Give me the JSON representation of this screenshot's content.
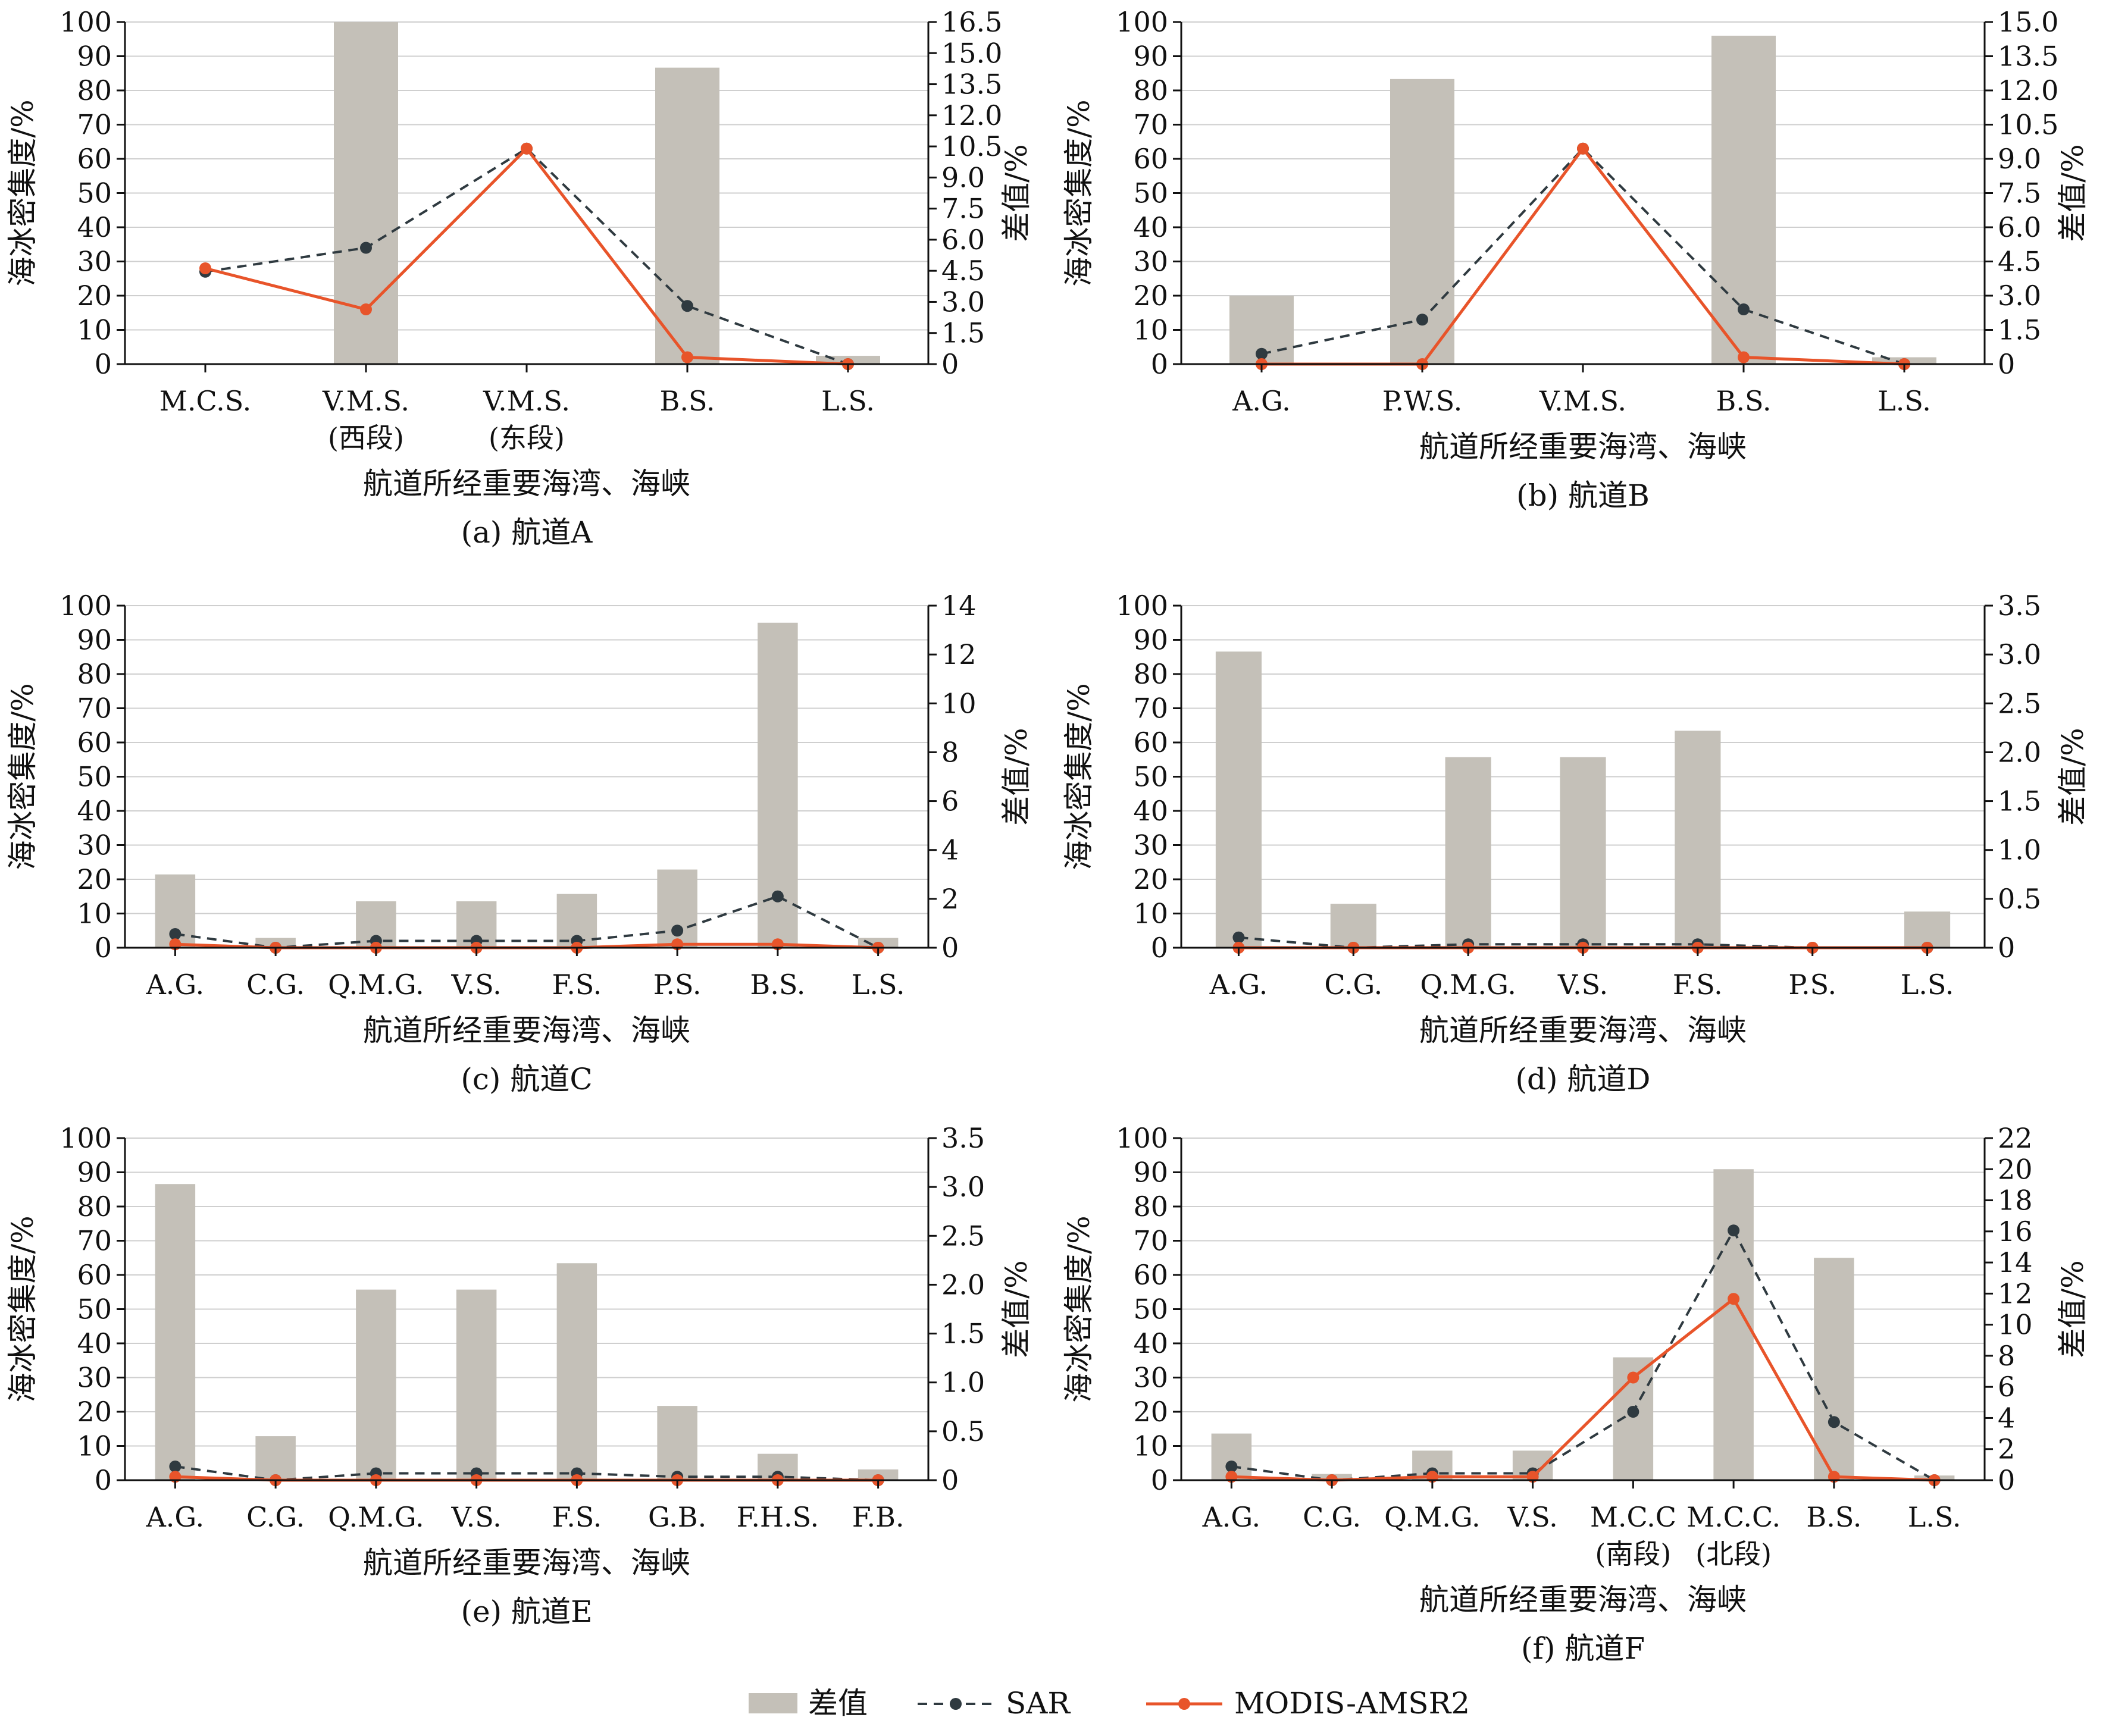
{
  "legend": [
    {
      "key": "diff",
      "label": "差值",
      "color": "#c4c0b8",
      "kind": "bar"
    },
    {
      "key": "sar",
      "label": "SAR",
      "color": "#2f3a40",
      "kind": "dashed-line"
    },
    {
      "key": "modis",
      "label": "MODIS-AMSR2",
      "color": "#e8542a",
      "kind": "line"
    }
  ],
  "chart_data": [
    {
      "type": "bar+line",
      "caption": "(a) 航道A",
      "xlabel": "航道所经重要海湾、海峡",
      "ylabel": "海冰密集度/%",
      "y2label": "差值/%",
      "categories": [
        [
          "M.C.S."
        ],
        [
          "V.M.S.",
          "(西段)"
        ],
        [
          "V.M.S.",
          "(东段)"
        ],
        [
          "B.S."
        ],
        [
          "L.S."
        ]
      ],
      "ylim": [
        0,
        100
      ],
      "yticks": [
        0,
        10,
        20,
        30,
        40,
        50,
        60,
        70,
        80,
        90,
        100
      ],
      "y2lim": [
        0,
        16.5
      ],
      "y2ticks": [
        "0",
        "1.5",
        "3.0",
        "4.5",
        "6.0",
        "7.5",
        "9.0",
        "10.5",
        "12.0",
        "13.5",
        "15.0",
        "16.5"
      ],
      "series": [
        {
          "name": "差值",
          "kind": "bar",
          "axis": "right",
          "values": [
            0,
            16.5,
            0,
            14.3,
            0.4
          ]
        },
        {
          "name": "SAR",
          "kind": "dashed-line",
          "axis": "left",
          "values": [
            27,
            34,
            63,
            17,
            0
          ]
        },
        {
          "name": "MODIS-AMSR2",
          "kind": "line",
          "axis": "left",
          "values": [
            28,
            16,
            63,
            2,
            0
          ]
        }
      ]
    },
    {
      "type": "bar+line",
      "caption": "(b) 航道B",
      "xlabel": "航道所经重要海湾、海峡",
      "ylabel": "海冰密集度/%",
      "y2label": "差值/%",
      "categories": [
        [
          "A.G."
        ],
        [
          "P.W.S."
        ],
        [
          "V.M.S."
        ],
        [
          "B.S."
        ],
        [
          "L.S."
        ]
      ],
      "ylim": [
        0,
        100
      ],
      "yticks": [
        0,
        10,
        20,
        30,
        40,
        50,
        60,
        70,
        80,
        90,
        100
      ],
      "y2lim": [
        0,
        15
      ],
      "y2ticks": [
        "0",
        "1.5",
        "3.0",
        "4.5",
        "6.0",
        "7.5",
        "9.0",
        "10.5",
        "12.0",
        "13.5",
        "15.0"
      ],
      "series": [
        {
          "name": "差值",
          "kind": "bar",
          "axis": "right",
          "values": [
            3.0,
            12.5,
            0,
            14.4,
            0.3
          ]
        },
        {
          "name": "SAR",
          "kind": "dashed-line",
          "axis": "left",
          "values": [
            3,
            13,
            63,
            16,
            0
          ]
        },
        {
          "name": "MODIS-AMSR2",
          "kind": "line",
          "axis": "left",
          "values": [
            0,
            0,
            63,
            2,
            0
          ]
        }
      ]
    },
    {
      "type": "bar+line",
      "caption": "(c) 航道C",
      "xlabel": "航道所经重要海湾、海峡",
      "ylabel": "海冰密集度/%",
      "y2label": "差值/%",
      "categories": [
        [
          "A.G."
        ],
        [
          "C.G."
        ],
        [
          "Q.M.G."
        ],
        [
          "V.S."
        ],
        [
          "F.S."
        ],
        [
          "P.S."
        ],
        [
          "B.S."
        ],
        [
          "L.S."
        ]
      ],
      "ylim": [
        0,
        100
      ],
      "yticks": [
        0,
        10,
        20,
        30,
        40,
        50,
        60,
        70,
        80,
        90,
        100
      ],
      "y2lim": [
        0,
        14
      ],
      "y2ticks": [
        "0",
        "2",
        "4",
        "6",
        "8",
        "10",
        "12",
        "14"
      ],
      "series": [
        {
          "name": "差值",
          "kind": "bar",
          "axis": "right",
          "values": [
            3.0,
            0.4,
            1.9,
            1.9,
            2.2,
            3.2,
            13.3,
            0.4
          ]
        },
        {
          "name": "SAR",
          "kind": "dashed-line",
          "axis": "left",
          "values": [
            4,
            0,
            2,
            2,
            2,
            5,
            15,
            0
          ]
        },
        {
          "name": "MODIS-AMSR2",
          "kind": "line",
          "axis": "left",
          "values": [
            1,
            0,
            0,
            0,
            0,
            1,
            1,
            0
          ]
        }
      ]
    },
    {
      "type": "bar+line",
      "caption": "(d) 航道D",
      "xlabel": "航道所经重要海湾、海峡",
      "ylabel": "海冰密集度/%",
      "y2label": "差值/%",
      "categories": [
        [
          "A.G."
        ],
        [
          "C.G."
        ],
        [
          "Q.M.G."
        ],
        [
          "V.S."
        ],
        [
          "F.S."
        ],
        [
          "P.S."
        ],
        [
          "L.S."
        ]
      ],
      "ylim": [
        0,
        100
      ],
      "yticks": [
        0,
        10,
        20,
        30,
        40,
        50,
        60,
        70,
        80,
        90,
        100
      ],
      "y2lim": [
        0,
        3.5
      ],
      "y2ticks": [
        "0",
        "0.5",
        "1.0",
        "1.5",
        "2.0",
        "2.5",
        "3.0",
        "3.5"
      ],
      "series": [
        {
          "name": "差值",
          "kind": "bar",
          "axis": "right",
          "values": [
            3.03,
            0.45,
            1.95,
            1.95,
            2.22,
            0,
            0.37
          ]
        },
        {
          "name": "SAR",
          "kind": "dashed-line",
          "axis": "left",
          "values": [
            3,
            0,
            1,
            1,
            1,
            0,
            0
          ]
        },
        {
          "name": "MODIS-AMSR2",
          "kind": "line",
          "axis": "left",
          "values": [
            0,
            0,
            0,
            0,
            0,
            0,
            0
          ]
        }
      ]
    },
    {
      "type": "bar+line",
      "caption": "(e) 航道E",
      "xlabel": "航道所经重要海湾、海峡",
      "ylabel": "海冰密集度/%",
      "y2label": "差值/%",
      "categories": [
        [
          "A.G."
        ],
        [
          "C.G."
        ],
        [
          "Q.M.G."
        ],
        [
          "V.S."
        ],
        [
          "F.S."
        ],
        [
          "G.B."
        ],
        [
          "F.H.S."
        ],
        [
          "F.B."
        ]
      ],
      "ylim": [
        0,
        100
      ],
      "yticks": [
        0,
        10,
        20,
        30,
        40,
        50,
        60,
        70,
        80,
        90,
        100
      ],
      "y2lim": [
        0,
        3.5
      ],
      "y2ticks": [
        "0",
        "0.5",
        "1.0",
        "1.5",
        "2.0",
        "2.5",
        "3.0",
        "3.5"
      ],
      "series": [
        {
          "name": "差值",
          "kind": "bar",
          "axis": "right",
          "values": [
            3.03,
            0.45,
            1.95,
            1.95,
            2.22,
            0.76,
            0.27,
            0.11
          ]
        },
        {
          "name": "SAR",
          "kind": "dashed-line",
          "axis": "left",
          "values": [
            4,
            0,
            2,
            2,
            2,
            1,
            1,
            0
          ]
        },
        {
          "name": "MODIS-AMSR2",
          "kind": "line",
          "axis": "left",
          "values": [
            1,
            0,
            0,
            0,
            0,
            0,
            0,
            0
          ]
        }
      ]
    },
    {
      "type": "bar+line",
      "caption": "(f) 航道F",
      "xlabel": "航道所经重要海湾、海峡",
      "ylabel": "海冰密集度/%",
      "y2label": "差值/%",
      "categories": [
        [
          "A.G."
        ],
        [
          "C.G."
        ],
        [
          "Q.M.G."
        ],
        [
          "V.S."
        ],
        [
          "M.C.C",
          "(南段)"
        ],
        [
          "M.C.C.",
          "(北段)"
        ],
        [
          "B.S."
        ],
        [
          "L.S."
        ]
      ],
      "ylim": [
        0,
        100
      ],
      "yticks": [
        0,
        10,
        20,
        30,
        40,
        50,
        60,
        70,
        80,
        90,
        100
      ],
      "y2lim": [
        0,
        22
      ],
      "y2ticks": [
        "0",
        "2",
        "4",
        "6",
        "8",
        "10",
        "12",
        "14",
        "16",
        "18",
        "20",
        "22"
      ],
      "series": [
        {
          "name": "差值",
          "kind": "bar",
          "axis": "right",
          "values": [
            3.0,
            0.4,
            1.9,
            1.9,
            7.9,
            20.0,
            14.3,
            0.3
          ]
        },
        {
          "name": "SAR",
          "kind": "dashed-line",
          "axis": "left",
          "values": [
            4,
            0,
            2,
            2,
            20,
            73,
            17,
            0
          ]
        },
        {
          "name": "MODIS-AMSR2",
          "kind": "line",
          "axis": "left",
          "values": [
            1,
            0,
            1,
            1,
            30,
            53,
            1,
            0
          ]
        }
      ]
    }
  ]
}
